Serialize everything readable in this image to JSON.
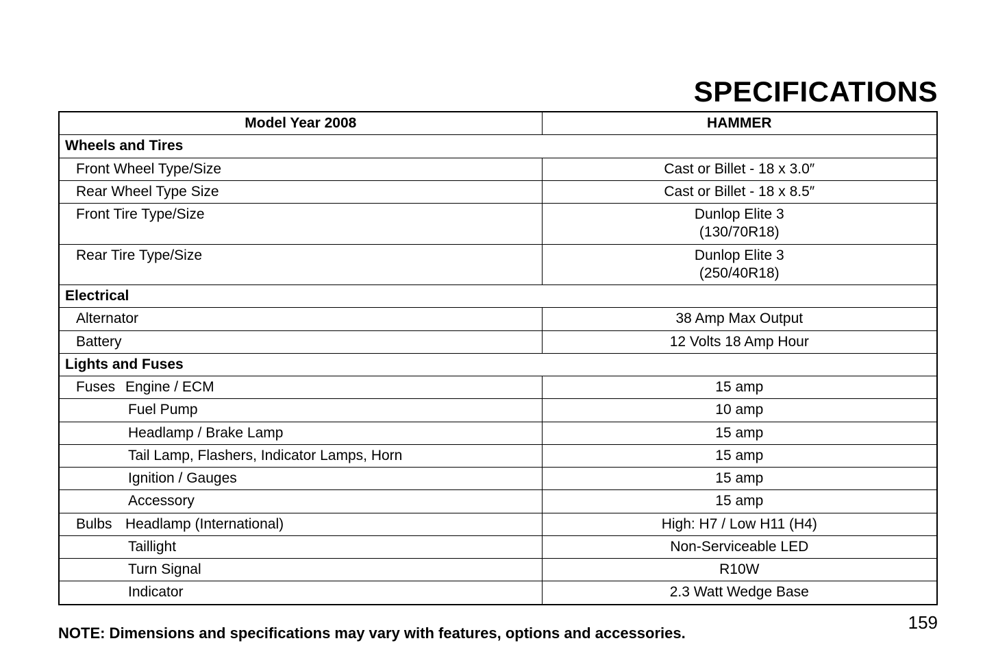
{
  "title": "SPECIFICATIONS",
  "headers": {
    "model": "Model Year 2008",
    "variant": "HAMMER"
  },
  "sections": [
    {
      "name": "Wheels and Tires",
      "rows": [
        {
          "label": "Front Wheel Type/Size",
          "indent": 1,
          "value": "Cast or Billet - 18 x 3.0″"
        },
        {
          "label": "Rear Wheel Type Size",
          "indent": 1,
          "value": "Cast or Billet - 18 x 8.5″"
        },
        {
          "label": "Front Tire Type/Size",
          "indent": 1,
          "value": "Dunlop Elite 3\n(130/70R18)"
        },
        {
          "label": "Rear Tire Type/Size",
          "indent": 1,
          "value": "Dunlop Elite 3\n(250/40R18)"
        }
      ]
    },
    {
      "name": "Electrical",
      "rows": [
        {
          "label": "Alternator",
          "indent": 1,
          "value": "38 Amp Max Output"
        },
        {
          "label": "Battery",
          "indent": 1,
          "value": "12 Volts 18 Amp Hour"
        }
      ]
    },
    {
      "name": "Lights and Fuses",
      "rows": [
        {
          "prefix": "Fuses",
          "label": "Engine / ECM",
          "indent": 2,
          "value": "15 amp"
        },
        {
          "label": "Fuel Pump",
          "indent": 2,
          "value": "10 amp"
        },
        {
          "label": "Headlamp / Brake Lamp",
          "indent": 2,
          "value": "15 amp"
        },
        {
          "label": "Tail Lamp, Flashers, Indicator Lamps, Horn",
          "indent": 2,
          "value": "15 amp"
        },
        {
          "label": "Ignition / Gauges",
          "indent": 2,
          "value": "15 amp"
        },
        {
          "label": "Accessory",
          "indent": 2,
          "value": "15 amp"
        },
        {
          "prefix": "Bulbs",
          "label": "Headlamp (International)",
          "indent": 2,
          "value": "High: H7 / Low H11 (H4)"
        },
        {
          "label": "Taillight",
          "indent": 2,
          "value": "Non-Serviceable LED"
        },
        {
          "label": "Turn Signal",
          "indent": 2,
          "value": "R10W"
        },
        {
          "label": "Indicator",
          "indent": 2,
          "value": "2.3 Watt Wedge Base"
        }
      ]
    }
  ],
  "note": "NOTE: Dimensions and specifications may vary with features, options and accessories.",
  "page_number": "159"
}
